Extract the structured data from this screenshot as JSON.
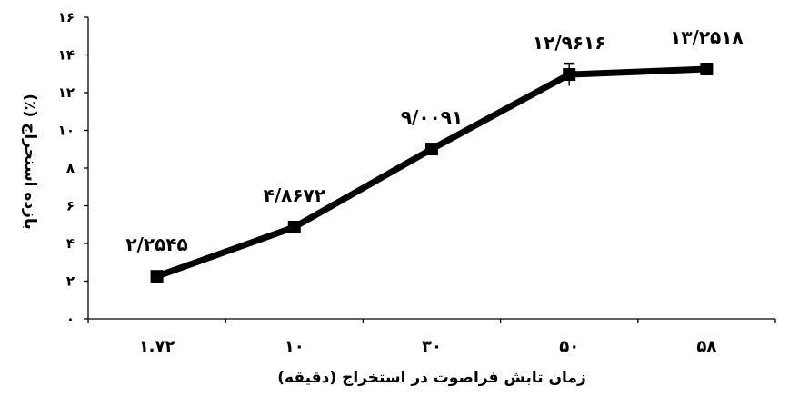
{
  "chart_data": {
    "type": "line",
    "categories": [
      "۱.۷۲",
      "۱۰",
      "۳۰",
      "۵۰",
      "۵۸"
    ],
    "values": [
      2.2545,
      4.8672,
      9.0091,
      12.9616,
      13.2518
    ],
    "error_bars": [
      0.1,
      0.3,
      0.1,
      0.6,
      0.25
    ],
    "data_labels": [
      "۲/۲۵۴۵",
      "۴/۸۶۷۲",
      "۹/۰۰۹۱",
      "۱۲/۹۶۱۶",
      "۱۳/۲۵۱۸"
    ],
    "yticks": [
      0,
      2,
      4,
      6,
      8,
      10,
      12,
      14,
      16
    ],
    "ytick_labels": [
      "۰",
      "۲",
      "۴",
      "۶",
      "۸",
      "۱۰",
      "۱۲",
      "۱۴",
      "۱۶"
    ],
    "ylim": [
      0,
      16
    ],
    "xlabel": "زمان تابش فراصوت در استخراج (دقیقه)",
    "ylabel": "بازده استخراج (٪)",
    "grid": false,
    "legend": false,
    "line_color": "#000000",
    "marker": "square"
  }
}
